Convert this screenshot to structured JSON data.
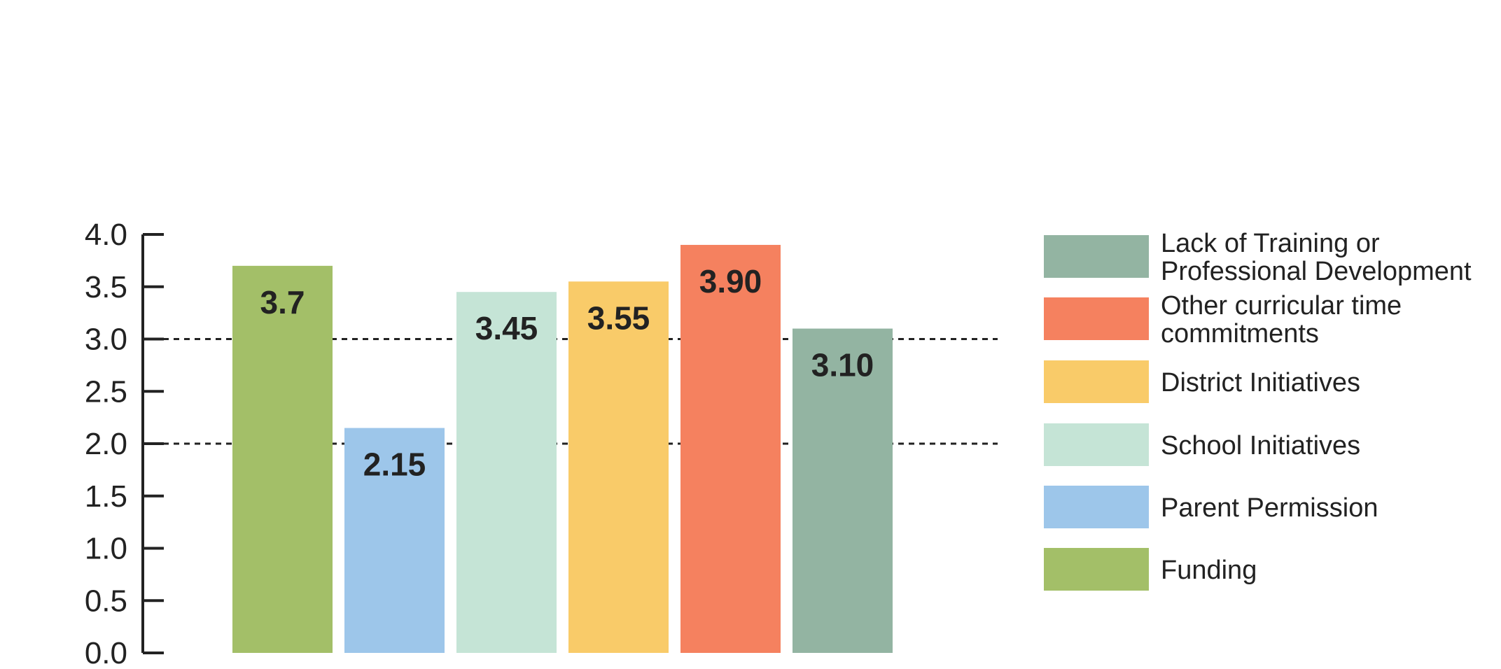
{
  "chart_data": {
    "type": "bar",
    "title": "",
    "xlabel": "",
    "ylabel": "",
    "ylim": [
      0,
      4.0
    ],
    "yticks": [
      "0.0",
      "0.5",
      "1.0",
      "1.5",
      "2.0",
      "2.5",
      "3.0",
      "3.5",
      "4.0"
    ],
    "reference_lines": [
      2.0,
      3.0
    ],
    "categories": [
      "Funding",
      "Parent Permission",
      "School Initiatives",
      "District Initiatives",
      "Other curricular time commitments",
      "Lack of Training or Professional Development"
    ],
    "values": [
      3.7,
      2.15,
      3.45,
      3.55,
      3.9,
      3.1
    ],
    "value_labels": [
      "3.7",
      "2.15",
      "3.45",
      "3.55",
      "3.90",
      "3.10"
    ],
    "colors": [
      "#a3bf68",
      "#9dc6ea",
      "#c5e4d6",
      "#f9cb69",
      "#f5815f",
      "#93b4a2"
    ],
    "legend": {
      "placement": "right",
      "entries": [
        {
          "lines": [
            "Lack of Training or",
            "Professional Development"
          ],
          "color": "#93b4a2"
        },
        {
          "lines": [
            "Other curricular time",
            "commitments"
          ],
          "color": "#f5815f"
        },
        {
          "lines": [
            "District Initiatives"
          ],
          "color": "#f9cb69"
        },
        {
          "lines": [
            "School Initiatives"
          ],
          "color": "#c5e4d6"
        },
        {
          "lines": [
            "Parent Permission"
          ],
          "color": "#9dc6ea"
        },
        {
          "lines": [
            "Funding"
          ],
          "color": "#a3bf68"
        }
      ]
    }
  }
}
